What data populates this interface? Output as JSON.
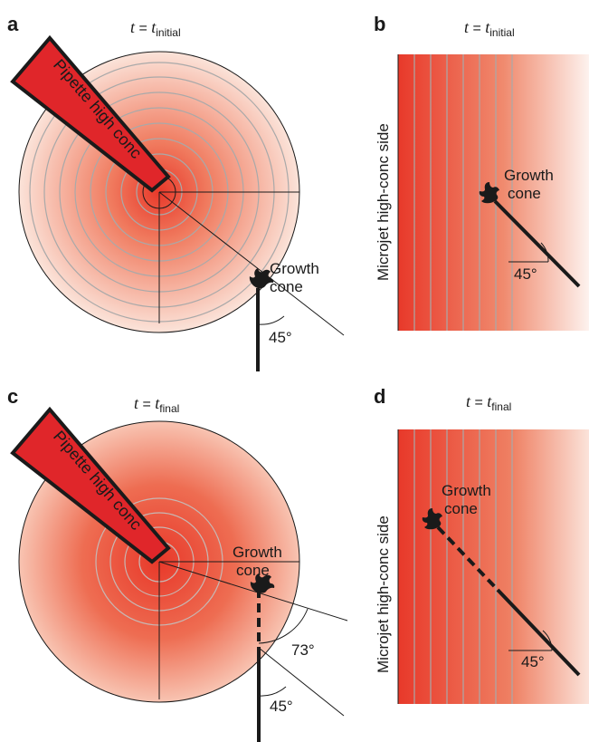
{
  "panels": {
    "a": {
      "letter": "a",
      "time_var": "t",
      "equals": " = ",
      "time_base": "t",
      "time_sub": "initial",
      "pipette_label": "Pipette high conc",
      "growth_cone_label_1": "Growth",
      "growth_cone_label_2": "cone",
      "angle_label": "45°"
    },
    "b": {
      "letter": "b",
      "time_var": "t",
      "equals": " = ",
      "time_base": "t",
      "time_sub": "initial",
      "side_label": "Microjet high-conc side",
      "growth_cone_label_1": "Growth",
      "growth_cone_label_2": "cone",
      "angle_label": "45°"
    },
    "c": {
      "letter": "c",
      "time_var": "t",
      "equals": " = ",
      "time_base": "t",
      "time_sub": "final",
      "pipette_label": "Pipette high conc",
      "growth_cone_label_1": "Growth",
      "growth_cone_label_2": "cone",
      "angle_label_1": "73°",
      "angle_label_2": "45°"
    },
    "d": {
      "letter": "d",
      "time_var": "t",
      "equals": " = ",
      "time_base": "t",
      "time_sub": "final",
      "side_label": "Microjet high-conc side",
      "growth_cone_label_1": "Growth",
      "growth_cone_label_2": "cone",
      "angle_label": "45°"
    }
  },
  "colors": {
    "pipette_fill": "#e0262a",
    "gradient_strong": "#e8412e",
    "gradient_weak": "#fbe3da",
    "contour_line": "#a9a9a9",
    "ink": "#1a1a1a"
  }
}
